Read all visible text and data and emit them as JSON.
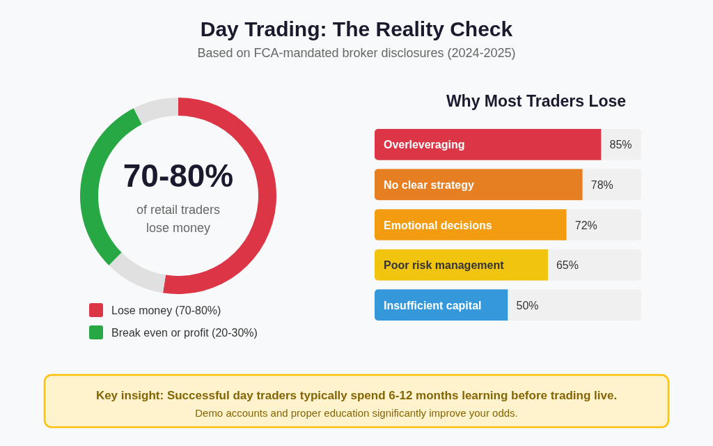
{
  "chart_data": [
    {
      "type": "donut",
      "title": "Day Trading: The Reality Check",
      "subtitle": "Based on FCA-mandated broker disclosures (2024-2025)",
      "categories": [
        "Lose money (70-80%)",
        null,
        "Break even or profit (20-30%)",
        null
      ],
      "values": [
        52.5,
        10,
        30,
        7.5
      ],
      "colors": [
        "#dc3545",
        "#e0e0e0",
        "#28a745",
        "#e0e0e0"
      ],
      "annotations": [
        "70-80%",
        "of retail traders lose money"
      ],
      "legend": "bottom"
    },
    {
      "type": "bar",
      "orientation": "horizontal",
      "stacked": true,
      "title": "Why Most Traders Lose",
      "categories": [
        "Overleveraging",
        "No clear strategy",
        "Emotional decisions",
        "Poor risk management",
        "Insufficient capital"
      ],
      "series": [
        {
          "colors": [
            "#dc3545",
            "#e67e22",
            "#f39c12",
            "#f1c40f",
            "#3498db"
          ],
          "values": [
            85,
            78,
            72,
            65,
            50
          ],
          "value_labels": [
            "85%",
            "78%",
            "72%",
            "65%",
            "50%"
          ]
        },
        {
          "color": "#f0f0f0",
          "values": [
            15,
            22,
            28,
            35,
            50
          ]
        }
      ],
      "xlim": [
        0,
        100
      ],
      "tick_labels": "y"
    },
    {
      "type": "other",
      "annotations": [
        "Key insight: Successful day traders typically spend 6-12 months learning before trading live.",
        "Demo accounts and proper education significantly improve your odds."
      ]
    }
  ]
}
